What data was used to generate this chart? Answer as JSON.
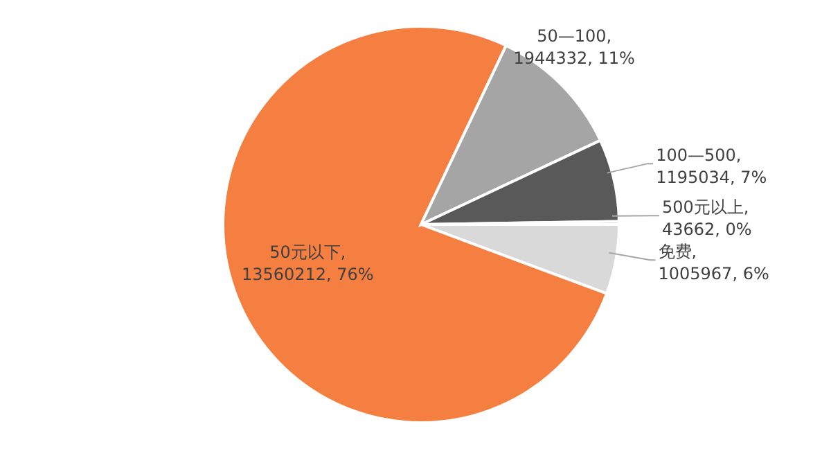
{
  "chart_data": {
    "type": "pie",
    "categories": [
      "免费",
      "50元以下",
      "50—100",
      "100—500",
      "500元以上"
    ],
    "values": [
      1005967,
      13560212,
      1944332,
      1195034,
      43662
    ],
    "colors": [
      "#d9d9d9",
      "#f47f41",
      "#a5a5a5",
      "#595959",
      "#7f7f7f"
    ],
    "value_labels": [
      ", 1005967, 6%",
      ", 13560212, 76%",
      ", 1944332, 11%",
      ", 1195034, 7%",
      ", 43662, 0%"
    ],
    "legend": false
  }
}
